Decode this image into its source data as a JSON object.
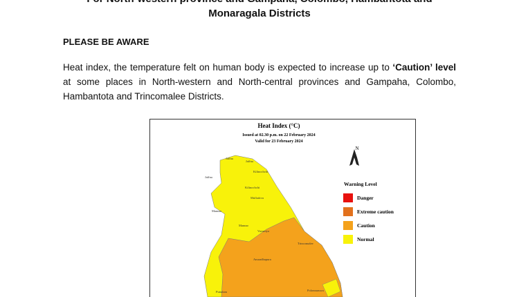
{
  "header": {
    "title_lines": [
      "For North-western province and Gampaha, Colombo, Hambantota and",
      "Monaragala Districts"
    ]
  },
  "notice": {
    "heading": "PLEASE BE AWARE",
    "paragraph": {
      "before": "Heat index, the temperature felt on human body is expected to increase up to ",
      "emphasis": "‘Caution’ level",
      "after": " at some places in North-western and North-central provinces and Gampaha, Colombo, Hambantota and Trincomalee Districts."
    }
  },
  "map": {
    "title": "Heat Index (°C)",
    "issued": "Issued at 02.30 p.m. on 22 February 2024",
    "valid": "Valid for 23 February 2024",
    "north": "N",
    "legend": {
      "title": "Warning Level",
      "items": [
        {
          "label": "Danger",
          "color": "#e8110f"
        },
        {
          "label": "Extreme caution",
          "color": "#e2711d"
        },
        {
          "label": "Caution",
          "color": "#f4a21c"
        },
        {
          "label": "Normal",
          "color": "#f8f20a"
        }
      ]
    },
    "district_labels": [
      "Jaffna",
      "Jaffna",
      "Kilinochchi",
      "Jaffna",
      "Kilinochchi",
      "Mullaitivu",
      "Mannar",
      "Mannar",
      "Vavuniya",
      "Trincomalee",
      "Anuradhapura",
      "Puttalam",
      "Polonnaruwa"
    ]
  }
}
